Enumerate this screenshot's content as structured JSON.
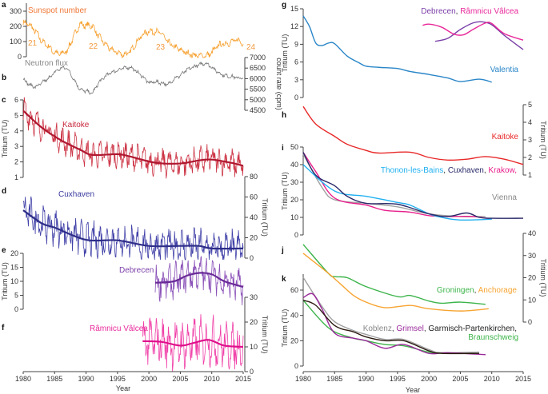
{
  "x_axis": {
    "label": "Year",
    "ticks": [
      1980,
      1985,
      1990,
      1995,
      2000,
      2005,
      2010,
      2015
    ]
  },
  "chart_data": [
    {
      "panel": "a",
      "type": "line",
      "label": "Sunspot number",
      "label_color": "#f07838",
      "ylim": [
        0,
        300
      ],
      "yticks": [
        0,
        100,
        200,
        300
      ],
      "axis": "left",
      "annotations": [
        "21",
        "22",
        "23",
        "24"
      ],
      "series": [
        {
          "name": "Sunspot number",
          "color": "#f6a02e",
          "raw": true,
          "noise_amplitude": 35,
          "x": [
            1980,
            1981,
            1982,
            1983,
            1984,
            1985,
            1986,
            1987,
            1988,
            1989,
            1990,
            1991,
            1992,
            1993,
            1994,
            1995,
            1996,
            1997,
            1998,
            1999,
            2000,
            2001,
            2002,
            2003,
            2004,
            2005,
            2006,
            2007,
            2008,
            2009,
            2010,
            2011,
            2012,
            2013,
            2014,
            2015
          ],
          "y": [
            225,
            210,
            165,
            100,
            70,
            25,
            18,
            40,
            130,
            215,
            205,
            205,
            135,
            85,
            45,
            28,
            12,
            30,
            95,
            145,
            170,
            165,
            155,
            95,
            65,
            45,
            25,
            12,
            5,
            5,
            25,
            75,
            85,
            95,
            110,
            90
          ]
        }
      ]
    },
    {
      "panel": "b",
      "type": "line",
      "label": "Neutron flux",
      "label_color": "#888888",
      "ylim": [
        4500,
        7000
      ],
      "yticks": [
        4500,
        5000,
        5500,
        6000,
        6500,
        7000
      ],
      "axis": "right",
      "ylabel": "count rate (cpm)",
      "series": [
        {
          "name": "Neutron flux",
          "color": "#777777",
          "raw": true,
          "noise_amplitude": 150,
          "x": [
            1980,
            1981,
            1982,
            1983,
            1984,
            1985,
            1986,
            1987,
            1988,
            1989,
            1990,
            1991,
            1992,
            1993,
            1994,
            1995,
            1996,
            1997,
            1998,
            1999,
            2000,
            2001,
            2002,
            2003,
            2004,
            2005,
            2006,
            2007,
            2008,
            2009,
            2010,
            2011,
            2012,
            2013,
            2014,
            2015
          ],
          "y": [
            6000,
            5700,
            5600,
            5800,
            6000,
            6300,
            6500,
            6500,
            6000,
            5500,
            5400,
            5300,
            5800,
            6100,
            6300,
            6400,
            6500,
            6550,
            6350,
            6100,
            5800,
            5850,
            5800,
            5700,
            6000,
            6150,
            6400,
            6550,
            6650,
            6750,
            6550,
            6300,
            6150,
            6100,
            6050,
            6000
          ]
        }
      ]
    },
    {
      "panel": "c",
      "type": "line",
      "label": "Kaitoke",
      "label_color": "#c8283c",
      "ylim": [
        1,
        6
      ],
      "yticks": [
        1,
        2,
        3,
        4,
        5,
        6
      ],
      "axis": "left",
      "ylabel": "Tritium (TU)",
      "series": [
        {
          "name": "Kaitoke",
          "color": "#cc3344",
          "raw": true,
          "noise_amplitude": 1.3,
          "smooth_color": "#b01830",
          "x": [
            1980,
            1983,
            1986,
            1989,
            1991,
            1995,
            1997,
            2001,
            2005,
            2008,
            2010,
            2013,
            2015
          ],
          "y": [
            5.3,
            4.2,
            3.4,
            2.8,
            2.45,
            2.5,
            2.35,
            1.95,
            1.9,
            2.1,
            2.15,
            1.95,
            1.75
          ]
        }
      ]
    },
    {
      "panel": "d",
      "type": "line",
      "label": "Cuxhaven",
      "label_color": "#3a3aa0",
      "ylim": [
        0,
        80
      ],
      "yticks": [
        0,
        20,
        40,
        60,
        80
      ],
      "axis": "right",
      "ylabel": "Tritium (TU)",
      "series": [
        {
          "name": "Cuxhaven",
          "color": "#4040a8",
          "raw": true,
          "noise_amplitude": 25,
          "smooth_color": "#2e2e8a",
          "x": [
            1980,
            1983,
            1985,
            1990,
            1995,
            2000,
            2005,
            2008,
            2010,
            2015
          ],
          "y": [
            47,
            34,
            30,
            18,
            17.5,
            12,
            12,
            12,
            9.5,
            9.5
          ]
        }
      ]
    },
    {
      "panel": "e",
      "type": "line",
      "label": "Debrecen",
      "label_color": "#7b3fa8",
      "ylim": [
        0,
        20
      ],
      "yticks": [
        0,
        5,
        10,
        15,
        20
      ],
      "axis": "left",
      "ylabel": "Tritium (TU)",
      "series": [
        {
          "name": "Debrecen",
          "color": "#8a50b8",
          "raw": true,
          "noise_amplitude": 9,
          "smooth_color": "#6a2a98",
          "x": [
            2001,
            2004,
            2006,
            2008,
            2010,
            2012,
            2015
          ],
          "y": [
            9.5,
            10,
            12,
            13,
            12.5,
            10,
            8
          ]
        }
      ]
    },
    {
      "panel": "f",
      "type": "line",
      "label": "Râmnicu Vâlcea",
      "label_color": "#e8289a",
      "ylim": [
        0,
        30
      ],
      "yticks": [
        0,
        10,
        20,
        30
      ],
      "axis": "right",
      "ylabel": "Tritium (TU)",
      "series": [
        {
          "name": "Râmnicu Vâlcea",
          "color": "#f040a8",
          "raw": true,
          "noise_amplitude": 14,
          "smooth_color": "#e0108c",
          "x": [
            1999,
            2002,
            2005,
            2007,
            2009.5,
            2012,
            2015
          ],
          "y": [
            12.3,
            12,
            10.5,
            11.5,
            12.8,
            10.5,
            10
          ]
        }
      ]
    },
    {
      "panel": "g",
      "type": "line",
      "ylim": [
        0,
        15
      ],
      "yticks": [
        0,
        3,
        6,
        9,
        12,
        15
      ],
      "axis": "left",
      "ylabel": "Tritium (TU)",
      "legend": [
        {
          "text": "Debrecen",
          "color": "#7b3fa8"
        },
        {
          "text": ", ",
          "color": "#333333"
        },
        {
          "text": "Râmnicu Vâlcea",
          "color": "#e8289a"
        }
      ],
      "label": "Valentia",
      "label_color": "#2a86c8",
      "series": [
        {
          "name": "Valentia",
          "color": "#2a86c8",
          "x": [
            1980,
            1981,
            1982,
            1983,
            1984,
            1985,
            1987,
            1989,
            1990,
            1992,
            1995,
            1997,
            2000,
            2003,
            2005,
            2008,
            2010
          ],
          "y": [
            13.8,
            12,
            9.2,
            8.8,
            9.2,
            9.1,
            7,
            5.8,
            5.3,
            5.1,
            4.9,
            4.4,
            3.9,
            3.3,
            2.7,
            3.1,
            2.6
          ]
        },
        {
          "name": "Debrecen",
          "color": "#7b3fa8",
          "x": [
            2001,
            2003,
            2005,
            2007,
            2008.5,
            2010,
            2012,
            2015
          ],
          "y": [
            9.5,
            10,
            11.5,
            12.6,
            12.8,
            12.3,
            10.5,
            8.1
          ]
        },
        {
          "name": "Râmnicu Vâlcea",
          "color": "#e8289a",
          "x": [
            1999,
            2000,
            2002,
            2004,
            2005.5,
            2007,
            2009,
            2010,
            2012,
            2015
          ],
          "y": [
            12.2,
            12.4,
            11.9,
            10.7,
            10.6,
            11.5,
            12.6,
            12.5,
            10.8,
            9.7
          ]
        }
      ]
    },
    {
      "panel": "h",
      "type": "line",
      "label": "Kaitoke",
      "label_color": "#e82828",
      "ylim": [
        1,
        5
      ],
      "yticks": [
        1,
        2,
        3,
        4,
        5
      ],
      "axis": "right",
      "ylabel": "Tritium (TU)",
      "series": [
        {
          "name": "Kaitoke",
          "color": "#e82828",
          "x": [
            1980,
            1982,
            1985,
            1987,
            1990,
            1992,
            1997,
            2000,
            2003,
            2006,
            2009,
            2012,
            2015
          ],
          "y": [
            4.9,
            3.9,
            3.2,
            2.75,
            2.4,
            2.25,
            2.3,
            2.0,
            1.85,
            1.9,
            2.05,
            1.9,
            1.6
          ]
        }
      ]
    },
    {
      "panel": "i",
      "type": "line",
      "ylim": [
        0,
        50
      ],
      "yticks": [
        0,
        10,
        20,
        30,
        40,
        50
      ],
      "axis": "left",
      "ylabel": "Tritium (TU)",
      "legend": [
        {
          "text": "Thonon-les-Bains",
          "color": "#20b0f0"
        },
        {
          "text": ", ",
          "color": "#333333"
        },
        {
          "text": "Cuxhaven",
          "color": "#2a2a6a"
        },
        {
          "text": ", ",
          "color": "#333333"
        },
        {
          "text": "Krakow,",
          "color": "#e8208c"
        }
      ],
      "legend2": {
        "text": "Vienna",
        "color": "#888888"
      },
      "series": [
        {
          "name": "Vienna",
          "color": "#a0a0a0",
          "x": [
            1980,
            1983,
            1985,
            1990,
            1995,
            2000,
            2005,
            2009
          ],
          "y": [
            46,
            27,
            20,
            18,
            16,
            12,
            10.5,
            10.5
          ]
        },
        {
          "name": "Krakow",
          "color": "#e8208c",
          "x": [
            1980,
            1982,
            1985,
            1990,
            1993,
            1997,
            2000,
            2003,
            2007,
            2010
          ],
          "y": [
            47,
            36,
            21,
            17,
            14,
            13,
            11,
            10.5,
            10.5,
            9
          ]
        },
        {
          "name": "Thonon-les-Bains",
          "color": "#20b0f0",
          "x": [
            1980,
            1985,
            1990,
            1995,
            1997,
            2000,
            2002,
            2005,
            2010
          ],
          "y": [
            40,
            25,
            22,
            18.5,
            17,
            12,
            10,
            8.5,
            9
          ]
        },
        {
          "name": "Cuxhaven",
          "color": "#2a2a6a",
          "x": [
            1980,
            1982,
            1985,
            1987,
            1990,
            1995,
            2000,
            2003,
            2006,
            2008,
            2010,
            2015
          ],
          "y": [
            47,
            34,
            28,
            22,
            18,
            17.5,
            12,
            10.5,
            12.5,
            10,
            9.5,
            9.5
          ]
        }
      ]
    },
    {
      "panel": "j",
      "type": "line",
      "ylim": [
        0,
        40
      ],
      "yticks": [
        0,
        10,
        20,
        30,
        40
      ],
      "axis": "right",
      "ylabel": "Tritium (TU)",
      "legend": [
        {
          "text": "Groningen",
          "color": "#3cb44a"
        },
        {
          "text": ", ",
          "color": "#333333"
        },
        {
          "text": "Anchorage",
          "color": "#f7a432"
        }
      ],
      "series": [
        {
          "name": "Groningen",
          "color": "#3cb44a",
          "x": [
            1980,
            1984,
            1985,
            1987,
            1990,
            1995,
            1997,
            2000,
            2002,
            2005,
            2009
          ],
          "y": [
            35,
            22,
            20.5,
            20,
            16,
            11.5,
            12,
            9.5,
            8.5,
            9,
            8
          ]
        },
        {
          "name": "Anchorage",
          "color": "#f7a432",
          "x": [
            1980,
            1984,
            1986,
            1988,
            1990,
            1993,
            1997,
            2000,
            2005,
            2009.5
          ],
          "y": [
            31,
            22,
            17,
            12,
            9,
            6.5,
            7.5,
            6,
            5,
            6
          ]
        }
      ]
    },
    {
      "panel": "k",
      "type": "line",
      "ylim": [
        0,
        60
      ],
      "yticks": [
        0,
        20,
        40,
        60
      ],
      "axis": "left",
      "ylabel": "Tritium (TU)",
      "legend": [
        {
          "text": "Koblenz",
          "color": "#888888"
        },
        {
          "text": ", ",
          "color": "#333333"
        },
        {
          "text": "Grimsel",
          "color": "#9a2a9a"
        },
        {
          "text": ", ",
          "color": "#333333"
        },
        {
          "text": "Garmisch-Partenkirchen,",
          "color": "#222222"
        }
      ],
      "legend2": {
        "text": "Braunschweig",
        "color": "#3cb44a"
      },
      "series": [
        {
          "name": "Koblenz",
          "color": "#a0a0a0",
          "x": [
            1980,
            1983,
            1985,
            1988,
            1990,
            1993,
            1996,
            2000,
            2002,
            2008
          ],
          "y": [
            70,
            47,
            35,
            28,
            25,
            21,
            21,
            13,
            10.5,
            11
          ]
        },
        {
          "name": "Braunschweig",
          "color": "#3cb44a",
          "x": [
            1980,
            1983,
            1985,
            1988,
            1990,
            1993,
            1996,
            2000,
            2003,
            2008
          ],
          "y": [
            52,
            35,
            27,
            22,
            20,
            17,
            16,
            11,
            10,
            10
          ]
        },
        {
          "name": "Grimsel",
          "color": "#9a2a9a",
          "x": [
            1980,
            1981.5,
            1983,
            1985,
            1988,
            1990,
            1993,
            1996,
            2000,
            2003,
            2009
          ],
          "y": [
            54,
            57,
            45,
            26,
            22,
            20,
            14,
            17,
            10,
            10.5,
            9
          ]
        },
        {
          "name": "Garmisch-Partenkirchen",
          "color": "#2a1a10",
          "x": [
            1980,
            1982,
            1985,
            1988,
            1990,
            1993,
            1996,
            2000,
            2002,
            2008
          ],
          "y": [
            52,
            48,
            32,
            27,
            23,
            20,
            20,
            12,
            10,
            10
          ]
        }
      ]
    }
  ]
}
